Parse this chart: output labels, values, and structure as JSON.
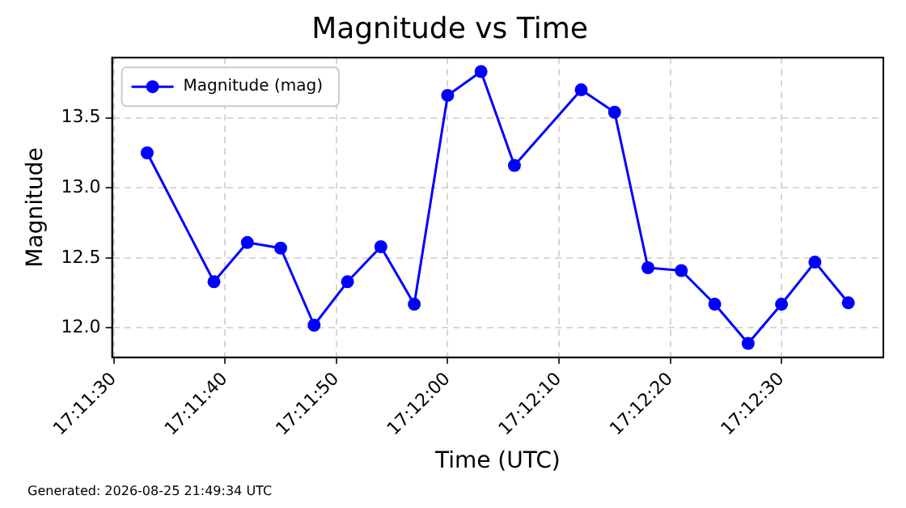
{
  "chart_data": {
    "type": "line",
    "title": "Magnitude vs Time",
    "xlabel": "Time (UTC)",
    "ylabel": "Magnitude",
    "annotations": [
      "Generated: 2026-08-25 21:49:34 UTC"
    ],
    "x": [
      17.1925,
      17.194167,
      17.195,
      17.195833,
      17.196667,
      17.1975,
      17.198333,
      17.199167,
      17.2,
      17.200833,
      17.201667,
      17.203333,
      17.204167,
      17.205,
      17.205833,
      17.206667,
      17.2075,
      17.208333,
      17.209167,
      17.21
    ],
    "series": [
      {
        "name": "Magnitude (mag)",
        "color": "#0000ff",
        "values": [
          13.25,
          12.33,
          12.61,
          12.57,
          12.02,
          12.33,
          12.58,
          12.17,
          13.66,
          13.83,
          13.16,
          13.7,
          13.54,
          12.43,
          12.41,
          12.17,
          11.89,
          12.17,
          12.47,
          12.18
        ]
      }
    ],
    "xlim": [
      17.191625,
      17.210875
    ],
    "xticks": [
      {
        "value": 17.191667,
        "label": "17:11:30"
      },
      {
        "value": 17.194444,
        "label": "17:11:40"
      },
      {
        "value": 17.197222,
        "label": "17:11:50"
      },
      {
        "value": 17.2,
        "label": "17:12:00"
      },
      {
        "value": 17.202778,
        "label": "17:12:10"
      },
      {
        "value": 17.205556,
        "label": "17:12:20"
      },
      {
        "value": 17.208333,
        "label": "17:12:30"
      }
    ],
    "ylim": [
      11.79,
      13.93
    ],
    "yticks": [
      {
        "value": 12,
        "label": "12.0"
      },
      {
        "value": 12.5,
        "label": "12.5"
      },
      {
        "value": 13,
        "label": "13.0"
      },
      {
        "value": 13.5,
        "label": "13.5"
      }
    ],
    "grid": true,
    "legend": "top left",
    "marker": "circle",
    "line_style": "solid"
  }
}
